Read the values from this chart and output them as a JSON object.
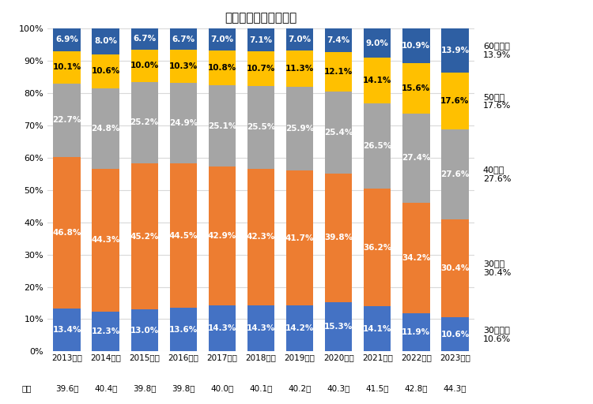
{
  "title": "年齢（全体・構成比）",
  "years": [
    "2013年度",
    "2014年度",
    "2015年度",
    "2016年度",
    "2017年度",
    "2018年度",
    "2019年度",
    "2020年度",
    "2021年度",
    "2022年度",
    "2023年度"
  ],
  "averages": [
    "39.6歳",
    "40.4歳",
    "39.8歳",
    "39.8歳",
    "40.0歳",
    "40.1歳",
    "40.2歳",
    "40.3歳",
    "41.5歳",
    "42.8歳",
    "44.3歳"
  ],
  "avg_label": "平均",
  "bar_colors": {
    "under30": "#4472C4",
    "30s": "#ED7D31",
    "40s": "#A5A5A5",
    "50s": "#FFC000",
    "over60": "#2E5FA3"
  },
  "data": {
    "under30": [
      13.4,
      12.3,
      13.0,
      13.6,
      14.3,
      14.3,
      14.2,
      15.3,
      14.1,
      11.9,
      10.6
    ],
    "30s": [
      46.8,
      44.3,
      45.2,
      44.5,
      42.9,
      42.3,
      41.7,
      39.8,
      36.2,
      34.2,
      30.4
    ],
    "40s": [
      22.7,
      24.8,
      25.2,
      24.9,
      25.1,
      25.5,
      25.9,
      25.4,
      26.5,
      27.4,
      27.6
    ],
    "50s": [
      10.1,
      10.6,
      10.0,
      10.3,
      10.8,
      10.7,
      11.3,
      12.1,
      14.1,
      15.6,
      17.6
    ],
    "over60": [
      6.9,
      8.0,
      6.7,
      6.7,
      7.0,
      7.1,
      7.0,
      7.4,
      9.0,
      10.9,
      13.9
    ]
  },
  "legend_entries": [
    {
      "label": "60歳以上",
      "pct": "13.9%",
      "key": "over60"
    },
    {
      "label": "50歳代",
      "pct": "17.6%",
      "key": "50s"
    },
    {
      "label": "40歳代",
      "pct": "27.6%",
      "key": "40s"
    },
    {
      "label": "30歳代",
      "pct": "30.4%",
      "key": "30s"
    },
    {
      "label": "30歳未満",
      "pct": "10.6%",
      "key": "under30"
    }
  ],
  "background_color": "#FFFFFF",
  "grid_color": "#D9D9D9",
  "yticks": [
    0,
    10,
    20,
    30,
    40,
    50,
    60,
    70,
    80,
    90,
    100
  ]
}
